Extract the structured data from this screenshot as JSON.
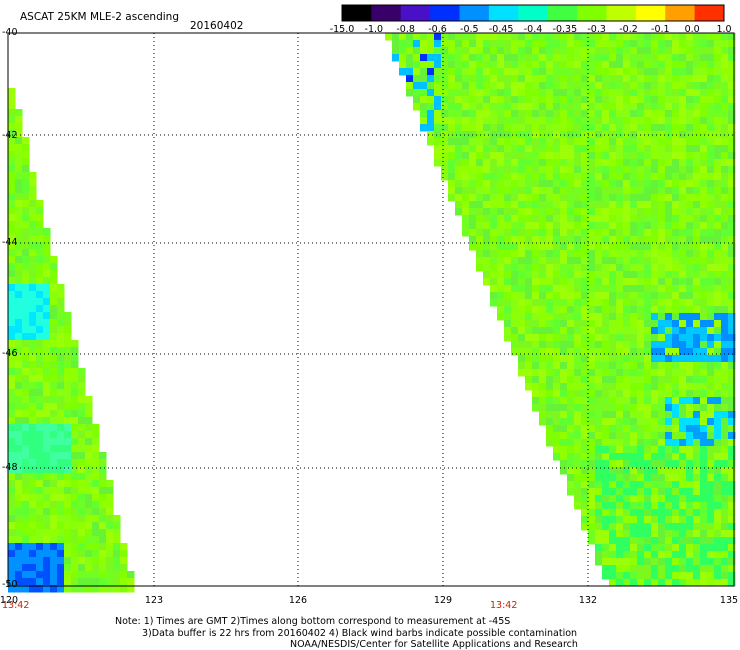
{
  "header": {
    "title": "ASCAT 25KM MLE-2 ascending",
    "date": "20160402"
  },
  "colorbar": {
    "labels": [
      "-15.0",
      "-1.0",
      "-0.8",
      "-0.6",
      "-0.5",
      "-0.45",
      "-0.4",
      "-0.35",
      "-0.3",
      "-0.2",
      "-0.1",
      "0.0",
      "1.0"
    ],
    "colors": [
      "#000000",
      "#3a006a",
      "#4a10c8",
      "#0030ff",
      "#0090ff",
      "#00e0ff",
      "#00ffc8",
      "#40ff40",
      "#80ff00",
      "#c0ff00",
      "#ffff00",
      "#ffa000",
      "#ff3000"
    ]
  },
  "axes": {
    "lat_labels": [
      "-40",
      "-42",
      "-44",
      "-46",
      "-48",
      "-50"
    ],
    "lon_labels": [
      "120",
      "123",
      "126",
      "129",
      "132",
      "135"
    ]
  },
  "time_labels": [
    "13:42",
    "13:42"
  ],
  "notes": {
    "line1": "Note: 1) Times are GMT 2)Times along bottom correspond to measurement at -45S",
    "line2": "3)Data buffer is 22 hrs from 20160402 4) Black wind barbs indicate possible contamination",
    "line3": "NOAA/NESDIS/Center for Satellite Applications and Research"
  }
}
